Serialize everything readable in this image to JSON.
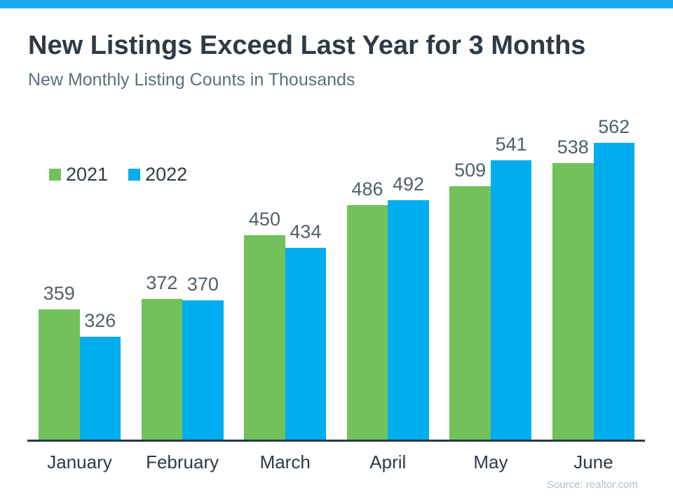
{
  "page": {
    "title": "New Listings Exceed Last Year for 3 Months",
    "subtitle": "New Monthly Listing Counts in Thousands",
    "source_note": "Source: realtor.com"
  },
  "colors": {
    "top_accent": "#1CA8E8",
    "series_2021": "#72C15A",
    "series_2022": "#00AEEF",
    "title_text": "#2F3A44",
    "subtitle_text": "#5A707B",
    "value_label_text": "#4E5F6D",
    "axis_line": "#2B3840",
    "source_text": "#B2BEC5"
  },
  "chart_data": {
    "type": "bar",
    "title": "New Listings Exceed Last Year for 3 Months",
    "subtitle": "New Monthly Listing Counts in Thousands",
    "categories": [
      "January",
      "February",
      "March",
      "April",
      "May",
      "June"
    ],
    "series": [
      {
        "name": "2021",
        "color": "#72C15A",
        "values": [
          359,
          372,
          450,
          486,
          509,
          538
        ]
      },
      {
        "name": "2022",
        "color": "#00AEEF",
        "values": [
          326,
          370,
          434,
          492,
          541,
          562
        ]
      }
    ],
    "ylim": [
      200,
      600
    ],
    "grid": false,
    "legend_position": "top-left-inside",
    "data_labels": true,
    "xlabel": "",
    "ylabel": "",
    "source": "Source: realtor.com"
  }
}
